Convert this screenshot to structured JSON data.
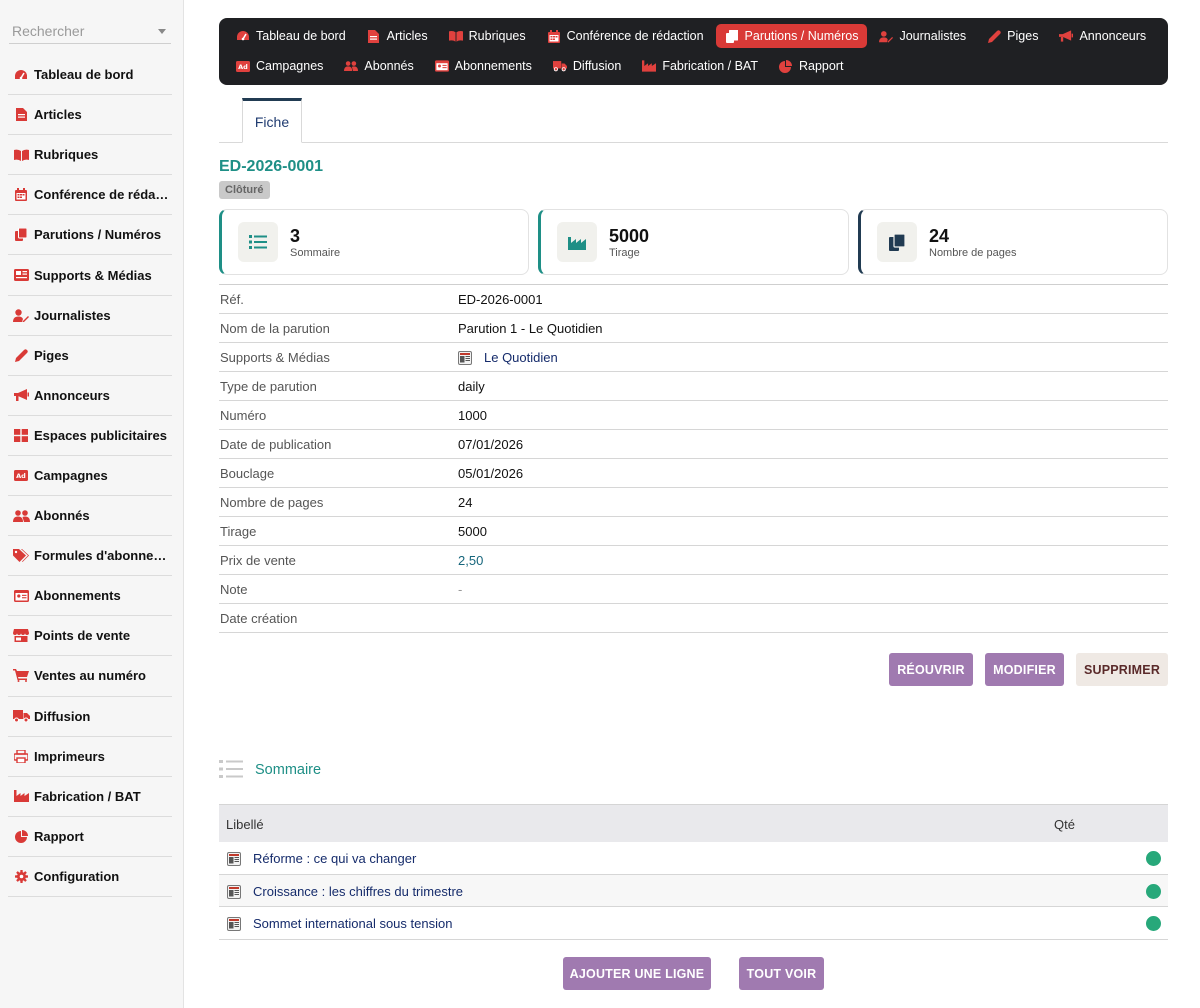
{
  "search": {
    "placeholder": "Rechercher"
  },
  "sidebar": {
    "items": [
      {
        "label": "Tableau de bord",
        "icon": "dashboard-icon"
      },
      {
        "label": "Articles",
        "icon": "document-icon"
      },
      {
        "label": "Rubriques",
        "icon": "book-icon"
      },
      {
        "label": "Conférence de rédac…",
        "icon": "calendar-icon"
      },
      {
        "label": "Parutions / Numéros",
        "icon": "copy-icon"
      },
      {
        "label": "Supports & Médias",
        "icon": "newspaper-icon"
      },
      {
        "label": "Journalistes",
        "icon": "user-pen-icon"
      },
      {
        "label": "Piges",
        "icon": "pen-icon"
      },
      {
        "label": "Annonceurs",
        "icon": "megaphone-icon"
      },
      {
        "label": "Espaces publicitaires",
        "icon": "grid-icon"
      },
      {
        "label": "Campagnes",
        "icon": "ad-icon"
      },
      {
        "label": "Abonnés",
        "icon": "users-icon"
      },
      {
        "label": "Formules d'abonne…",
        "icon": "tags-icon"
      },
      {
        "label": "Abonnements",
        "icon": "id-card-icon"
      },
      {
        "label": "Points de vente",
        "icon": "store-icon"
      },
      {
        "label": "Ventes au numéro",
        "icon": "cart-icon"
      },
      {
        "label": "Diffusion",
        "icon": "truck-icon"
      },
      {
        "label": "Imprimeurs",
        "icon": "printer-icon"
      },
      {
        "label": "Fabrication / BAT",
        "icon": "industry-icon"
      },
      {
        "label": "Rapport",
        "icon": "pie-chart-icon"
      },
      {
        "label": "Configuration",
        "icon": "gear-icon"
      }
    ]
  },
  "topnav": {
    "row1": [
      {
        "label": "Tableau de bord",
        "icon": "dashboard-icon",
        "active": false
      },
      {
        "label": "Articles",
        "icon": "document-icon",
        "active": false
      },
      {
        "label": "Rubriques",
        "icon": "book-icon",
        "active": false
      },
      {
        "label": "Conférence de rédaction",
        "icon": "calendar-icon",
        "active": false
      },
      {
        "label": "Parutions / Numéros",
        "icon": "copy-icon",
        "active": true
      },
      {
        "label": "Journalistes",
        "icon": "user-pen-icon",
        "active": false
      },
      {
        "label": "Piges",
        "icon": "pen-icon",
        "active": false
      },
      {
        "label": "Annonceurs",
        "icon": "megaphone-icon",
        "active": false
      }
    ],
    "row2": [
      {
        "label": "Campagnes",
        "icon": "ad-icon",
        "active": false
      },
      {
        "label": "Abonnés",
        "icon": "users-icon",
        "active": false
      },
      {
        "label": "Abonnements",
        "icon": "id-card-icon",
        "active": false
      },
      {
        "label": "Diffusion",
        "icon": "truck-icon",
        "active": false
      },
      {
        "label": "Fabrication / BAT",
        "icon": "industry-icon",
        "active": false
      },
      {
        "label": "Rapport",
        "icon": "pie-chart-icon",
        "active": false
      }
    ]
  },
  "tabs": {
    "fiche": "Fiche"
  },
  "record": {
    "ref": "ED-2026-0001",
    "status": "Clôturé"
  },
  "stats": [
    {
      "value": "3",
      "label": "Sommaire",
      "icon": "list-icon",
      "accent": "#1e8f86"
    },
    {
      "value": "5000",
      "label": "Tirage",
      "icon": "industry-icon",
      "accent": "#1e8f86"
    },
    {
      "value": "24",
      "label": "Nombre de pages",
      "icon": "copy-icon",
      "accent": "#213b52"
    }
  ],
  "details": [
    {
      "key": "Réf.",
      "value": "ED-2026-0001"
    },
    {
      "key": "Nom de la parution",
      "value": "Parution 1 - Le Quotidien"
    },
    {
      "key": "Supports & Médias",
      "value": "Le Quotidien",
      "type": "link",
      "icon": "newspaper-thumb-icon"
    },
    {
      "key": "Type de parution",
      "value": "daily"
    },
    {
      "key": "Numéro",
      "value": "1000"
    },
    {
      "key": "Date de publication",
      "value": "07/01/2026"
    },
    {
      "key": "Bouclage",
      "value": "05/01/2026"
    },
    {
      "key": "Nombre de pages",
      "value": "24"
    },
    {
      "key": "Tirage",
      "value": "5000"
    },
    {
      "key": "Prix de vente",
      "value": "2,50",
      "type": "price"
    },
    {
      "key": "Note",
      "value": "-",
      "type": "muted"
    },
    {
      "key": "Date création",
      "value": ""
    }
  ],
  "actions": {
    "reopen": "RÉOUVRIR",
    "edit": "MODIFIER",
    "delete": "SUPPRIMER"
  },
  "sommaire": {
    "title": "Sommaire",
    "headers": {
      "label": "Libellé",
      "qty": "Qté"
    },
    "rows": [
      {
        "label": "Réforme : ce qui va changer",
        "status_color": "#27a87a"
      },
      {
        "label": "Croissance : les chiffres du trimestre",
        "status_color": "#27a87a"
      },
      {
        "label": "Sommet international sous tension",
        "status_color": "#27a87a"
      }
    ],
    "add_label": "AJOUTER UNE LIGNE",
    "all_label": "TOUT VOIR"
  },
  "colors": {
    "brand_red": "#d93a37",
    "teal": "#1e8f86",
    "navy": "#213b52",
    "button_purple": "#a07ab0",
    "nav_bg": "#1f2023"
  }
}
